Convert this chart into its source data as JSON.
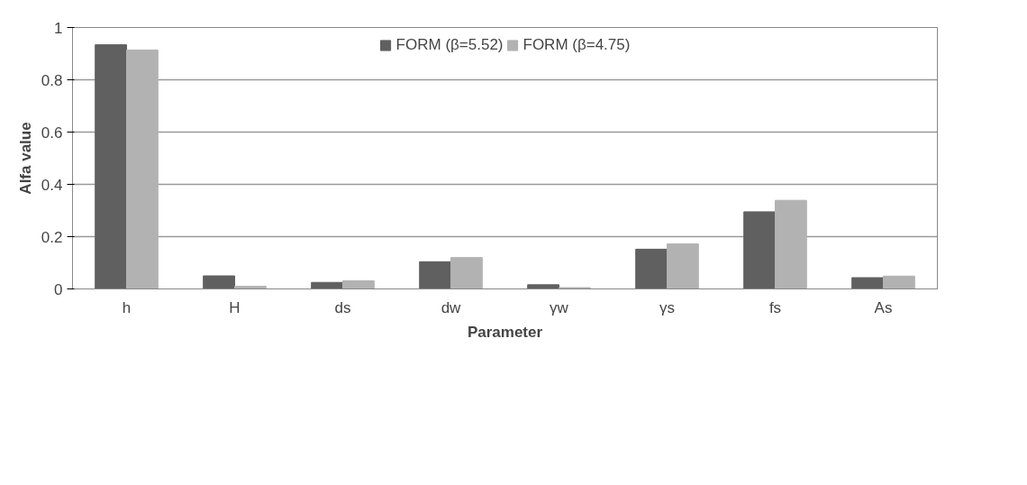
{
  "chart_data": {
    "type": "bar",
    "xlabel": "Parameter",
    "ylabel": "Alfa value",
    "categories": [
      "h",
      "H",
      "ds",
      "dw",
      "γw",
      "γs",
      "fs",
      "As"
    ],
    "series": [
      {
        "name": "FORM (β=5.52)",
        "color": "#606060",
        "values": [
          0.934,
          0.05,
          0.025,
          0.104,
          0.016,
          0.152,
          0.295,
          0.043
        ]
      },
      {
        "name": "FORM (β=4.75)",
        "color": "#b2b2b2",
        "values": [
          0.914,
          0.01,
          0.031,
          0.12,
          0.005,
          0.172,
          0.339,
          0.049
        ]
      }
    ],
    "ylim": [
      0,
      1
    ],
    "yticks": [
      0,
      0.2,
      0.4,
      0.6,
      0.8,
      1
    ],
    "grid": "y",
    "legend": "top"
  }
}
